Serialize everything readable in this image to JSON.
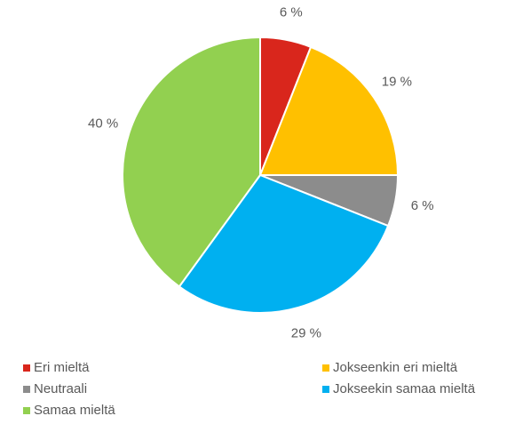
{
  "chart_data": {
    "type": "pie",
    "categories": [
      "Eri mieltä",
      "Jokseenkin eri mieltä",
      "Neutraali",
      "Jokseekin samaa mieltä",
      "Samaa mieltä"
    ],
    "values": [
      6,
      19,
      6,
      29,
      40
    ],
    "value_labels": [
      "6 %",
      "19 %",
      "6 %",
      "29 %",
      "40 %"
    ],
    "colors": [
      "#d9261c",
      "#ffc000",
      "#8c8c8c",
      "#00b0f0",
      "#92d050"
    ],
    "legend": "bottom"
  }
}
